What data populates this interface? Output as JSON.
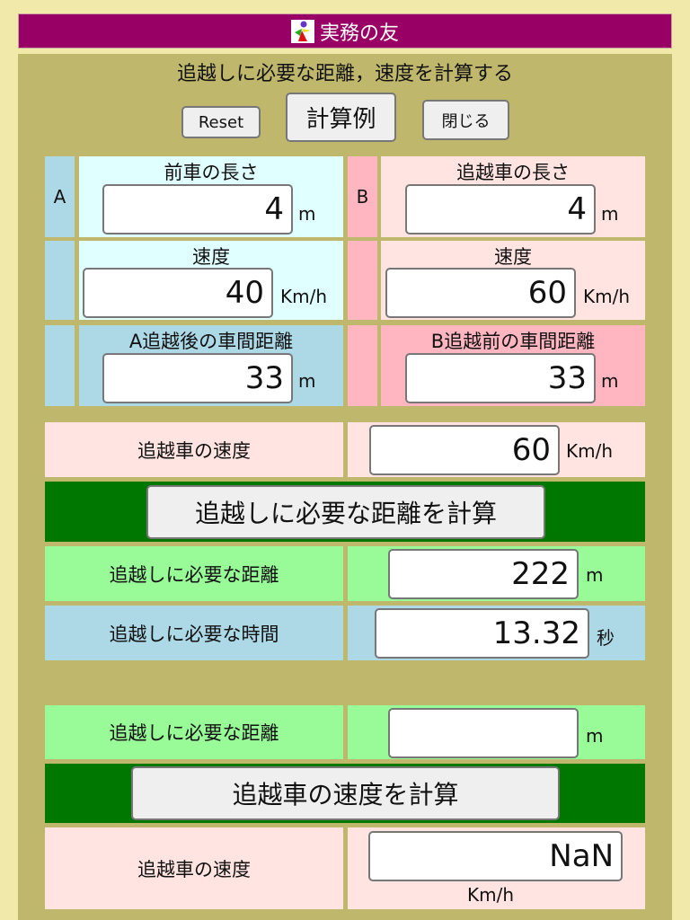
{
  "header": {
    "title": "実務の友",
    "logo_icon": "running-person-logo"
  },
  "page_title": "追越しに必要な距離，速度を計算する",
  "toolbar": {
    "reset": "Reset",
    "example": "計算例",
    "close": "閉じる"
  },
  "car_a": {
    "tag": "A",
    "length_label": "前車の長さ",
    "length": "4",
    "length_unit": "m",
    "speed_label": "速度",
    "speed": "40",
    "speed_unit": "Km/h",
    "gap_label": "A追越後の車間距離",
    "gap": "33",
    "gap_unit": "m"
  },
  "car_b": {
    "tag": "B",
    "length_label": "追越車の長さ",
    "length": "4",
    "length_unit": "m",
    "speed_label": "速度",
    "speed": "60",
    "speed_unit": "Km/h",
    "gap_label": "B追越前の車間距離",
    "gap": "33",
    "gap_unit": "m"
  },
  "calc1": {
    "speed_label": "追越車の速度",
    "speed": "60",
    "speed_unit": "Km/h",
    "button": "追越しに必要な距離を計算",
    "dist_label": "追越しに必要な距離",
    "dist": "222",
    "dist_unit": "m",
    "time_label": "追越しに必要な時間",
    "time": "13.32",
    "time_unit": "秒"
  },
  "calc2": {
    "dist_label": "追越しに必要な距離",
    "dist": "",
    "dist_unit": "m",
    "button": "追越車の速度を計算",
    "speed_label": "追越車の速度",
    "speed": "NaN",
    "speed_unit": "Km/h"
  },
  "colors": {
    "header": "#990066",
    "panel": "#bfb76c",
    "dark_green": "#007700",
    "light_green": "#98fb98",
    "light_blue": "#add8e6",
    "light_cyan": "#e0ffff",
    "pink": "#ffb6c1",
    "misty_rose": "#ffe4e1"
  }
}
